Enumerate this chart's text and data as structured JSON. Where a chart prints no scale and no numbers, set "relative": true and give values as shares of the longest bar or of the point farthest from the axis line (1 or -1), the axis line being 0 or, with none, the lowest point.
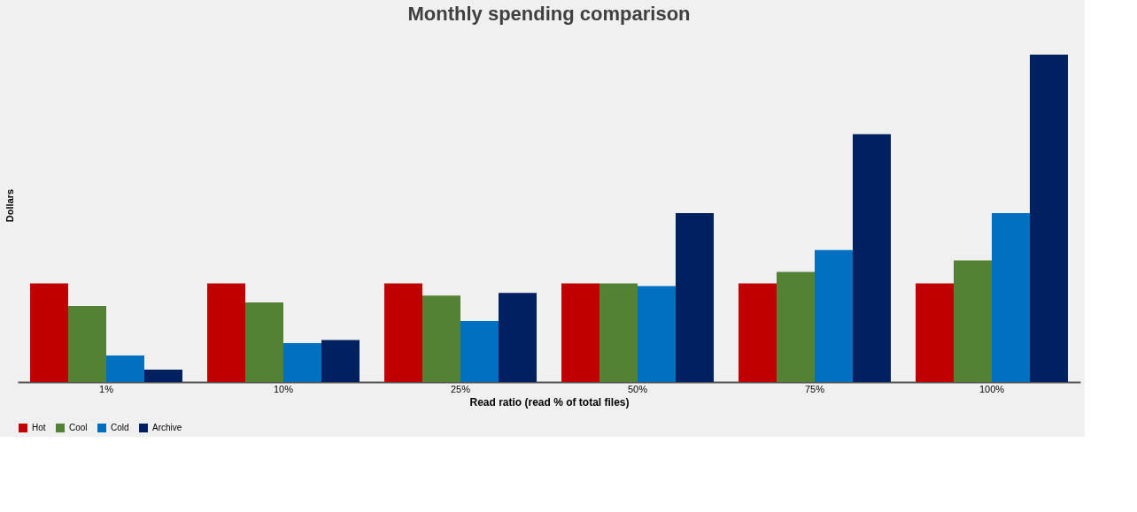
{
  "chart_data": {
    "type": "bar",
    "title": "Monthly spending comparison",
    "xlabel": "Read ratio (read % of total files)",
    "ylabel": "Dollars",
    "relative": true,
    "legend": "bottom",
    "grid": false,
    "categories": [
      "1%",
      "10%",
      "25%",
      "50%",
      "75%",
      "100%"
    ],
    "series": [
      {
        "name": "Hot",
        "color": "#c00000",
        "values": [
          0.301,
          0.301,
          0.301,
          0.301,
          0.301,
          0.301
        ]
      },
      {
        "name": "Cool",
        "color": "#548235",
        "values": [
          0.232,
          0.243,
          0.264,
          0.301,
          0.336,
          0.371
        ]
      },
      {
        "name": "Cold",
        "color": "#0070c0",
        "values": [
          0.081,
          0.119,
          0.186,
          0.293,
          0.403,
          0.516
        ]
      },
      {
        "name": "Archive",
        "color": "#002060",
        "values": [
          0.038,
          0.128,
          0.272,
          0.516,
          0.757,
          1.0
        ]
      }
    ]
  }
}
